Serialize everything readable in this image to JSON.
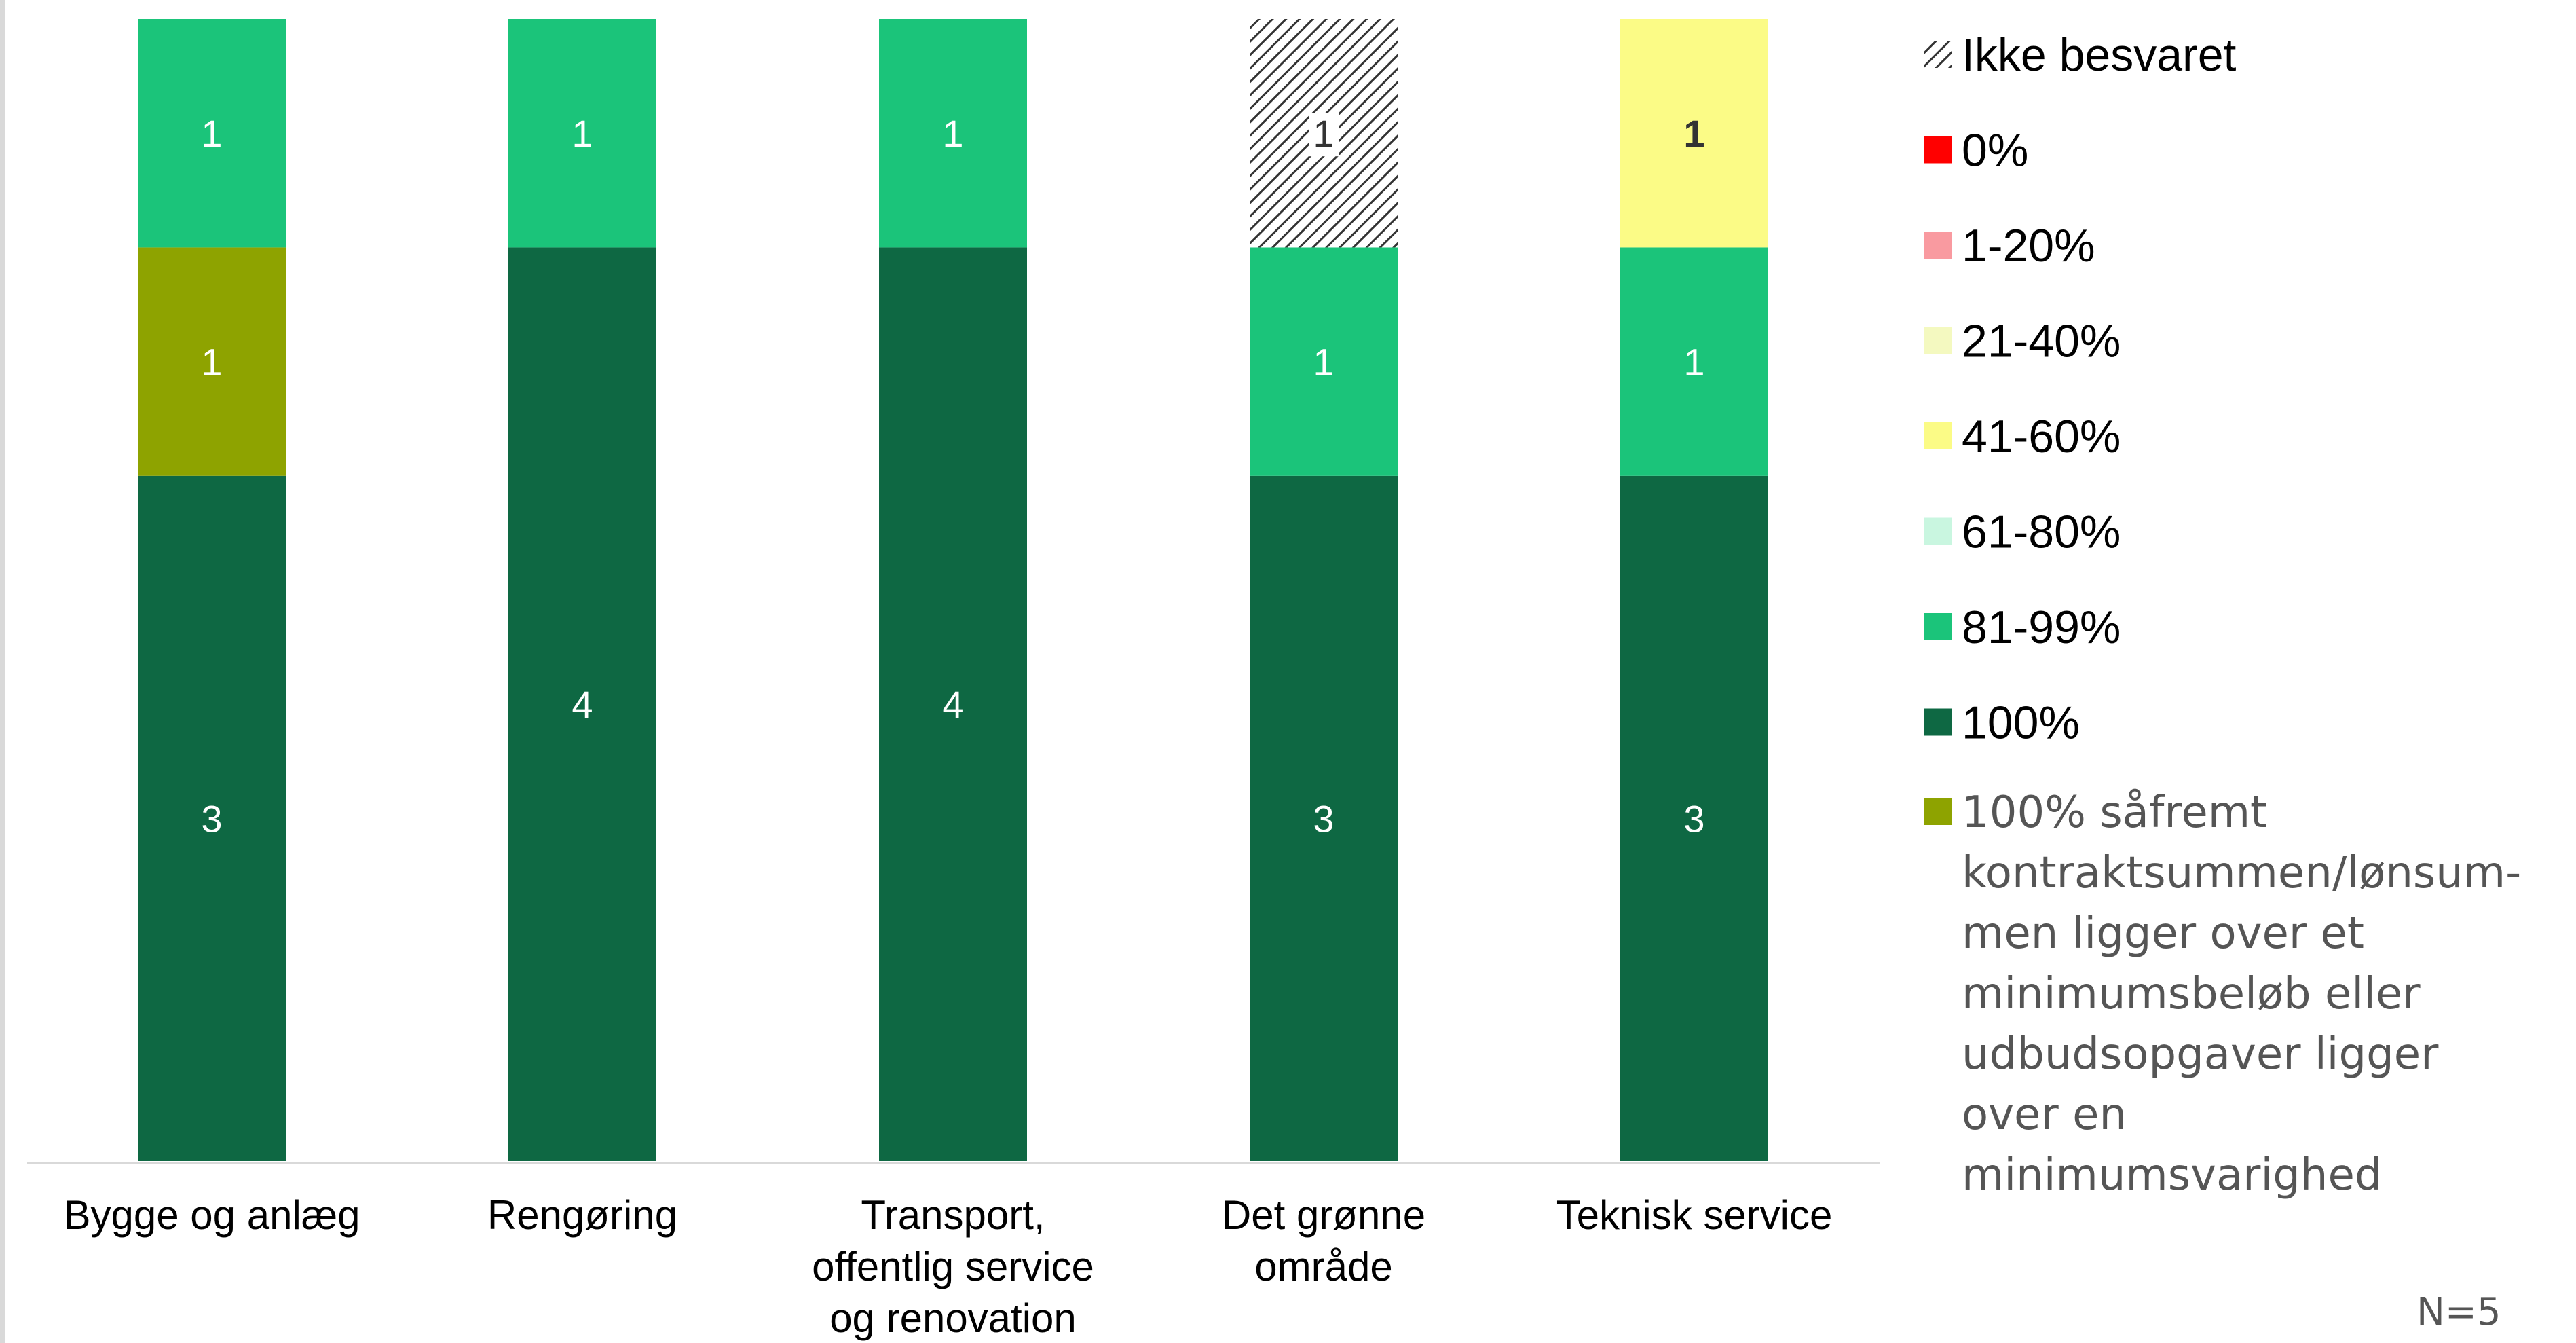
{
  "chart_data": {
    "type": "bar",
    "stacked": true,
    "categories": [
      [
        "Bygge og anlæg"
      ],
      [
        "Rengøring"
      ],
      [
        "Transport,",
        "offentlig service",
        "og renovation"
      ],
      [
        "Det grønne",
        "område"
      ],
      [
        "Teknisk service"
      ]
    ],
    "series": [
      {
        "name": "100%",
        "color": "#0e6843",
        "label_color": "#ffffff",
        "label_bold": false,
        "values": [
          3,
          4,
          4,
          3,
          3
        ]
      },
      {
        "name": "100% såfremt kontraktsummen/lønsummen ligger over et minimumsbeløb eller udbudsopgaver ligger over en minimumsvarighed",
        "color": "#8ea300",
        "label_color": "#ffffff",
        "label_bold": false,
        "values": [
          1,
          0,
          0,
          0,
          0
        ]
      },
      {
        "name": "81-99%",
        "color": "#1bc47a",
        "label_color": "#ffffff",
        "label_bold": false,
        "values": [
          1,
          1,
          1,
          1,
          1
        ]
      },
      {
        "name": "61-80%",
        "color": "#c9f6e0",
        "label_color": "#333333",
        "label_bold": false,
        "values": [
          0,
          0,
          0,
          0,
          0
        ]
      },
      {
        "name": "41-60%",
        "color": "#fbfb86",
        "label_color": "#333333",
        "label_bold": true,
        "values": [
          0,
          0,
          0,
          0,
          1
        ]
      },
      {
        "name": "21-40%",
        "color": "#f4f9c0",
        "label_color": "#333333",
        "label_bold": false,
        "values": [
          0,
          0,
          0,
          0,
          0
        ]
      },
      {
        "name": "1-20%",
        "color": "#f99aa0",
        "label_color": "#333333",
        "label_bold": false,
        "values": [
          0,
          0,
          0,
          0,
          0
        ]
      },
      {
        "name": "0%",
        "color": "#ff0000",
        "label_color": "#ffffff",
        "label_bold": false,
        "values": [
          0,
          0,
          0,
          0,
          0
        ]
      },
      {
        "name": "Ikke besvaret",
        "color": "#333333",
        "pattern": "diagonal-hatch",
        "label_color": "#333333",
        "label_bold": false,
        "values": [
          0,
          0,
          0,
          1,
          0
        ]
      }
    ],
    "legend_order": [
      "Ikke besvaret",
      "0%",
      "1-20%",
      "21-40%",
      "41-60%",
      "61-80%",
      "81-99%",
      "100%",
      "100% såfremt kontraktsummen/lønsummen ligger over et minimumsbeløb eller udbudsopgaver ligger over en minimumsvarighed"
    ],
    "legend_last_lines": [
      "100% såfremt",
      "kontraktsummen/lønsum-",
      "men ligger over et",
      "minimumsbeløb eller",
      "udbudsopgaver ligger",
      "over en",
      "minimumsvarighed"
    ],
    "ylim": [
      0,
      5
    ],
    "legend_position": "right",
    "grid": false
  },
  "note": "N=5"
}
